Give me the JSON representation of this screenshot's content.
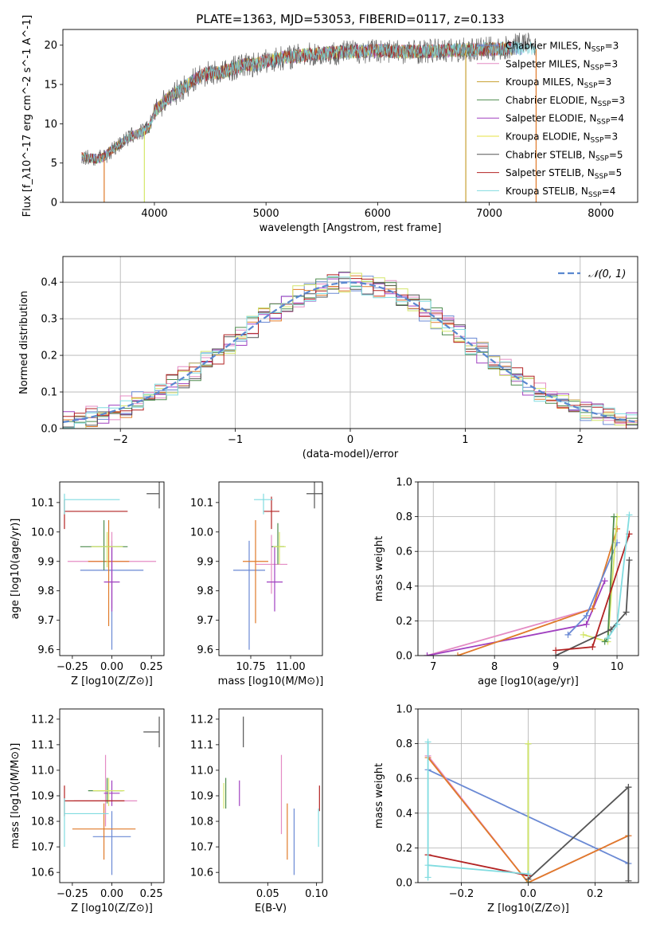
{
  "figure_title": "PLATE=1363, MJD=53053, FIBERID=0117, z=0.133",
  "chart_data": [
    {
      "id": "spectrum",
      "type": "line",
      "title": "PLATE=1363, MJD=53053, FIBERID=0117, z=0.133",
      "xlabel": "wavelength [Angstrom, rest frame]",
      "ylabel": "Flux [f_λ10^-17 erg cm^-2 s^-1 A^-1]",
      "xlim": [
        3180,
        8330
      ],
      "ylim": [
        0,
        22
      ],
      "xticks": [
        4000,
        5000,
        6000,
        7000,
        8000
      ],
      "yticks": [
        0,
        5,
        10,
        15,
        20
      ],
      "legend_position": "upper right",
      "series": [
        {
          "name": "Chabrier MILES, N_SSP=3",
          "color": "#6a89d4"
        },
        {
          "name": "Salpeter MILES, N_SSP=3",
          "color": "#e48bc4"
        },
        {
          "name": "Kroupa MILES, N_SSP=3",
          "color": "#c8a030"
        },
        {
          "name": "Chabrier ELODIE, N_SSP=3",
          "color": "#4e8c4e"
        },
        {
          "name": "Salpeter ELODIE, N_SSP=4",
          "color": "#a040c0"
        },
        {
          "name": "Kroupa ELODIE, N_SSP=3",
          "color": "#e6e040"
        },
        {
          "name": "Chabrier STELIB, N_SSP=5",
          "color": "#555555"
        },
        {
          "name": "Salpeter STELIB, N_SSP=5",
          "color": "#b22222"
        },
        {
          "name": "Kroupa STELIB, N_SSP=4",
          "color": "#80dce0"
        }
      ],
      "continuum": {
        "x": [
          3350,
          3500,
          3550,
          3600,
          3700,
          3800,
          3900,
          3950,
          4000,
          4100,
          4200,
          4300,
          4400,
          4500,
          4600,
          4700,
          4800,
          4900,
          5000,
          5200,
          5400,
          5600,
          5800,
          6000,
          6200,
          6400,
          6600,
          6800,
          7000,
          7200,
          7400
        ],
        "y": [
          5.8,
          5.5,
          5.8,
          6.5,
          7.5,
          8.5,
          9.0,
          9.5,
          11.5,
          13.0,
          14.0,
          15.0,
          16.0,
          16.5,
          16.5,
          17.0,
          17.5,
          17.5,
          18.0,
          18.5,
          18.8,
          19.0,
          19.2,
          19.3,
          19.2,
          19.2,
          19.3,
          19.4,
          19.5,
          19.6,
          19.5
        ]
      }
    },
    {
      "id": "residuals",
      "type": "bar",
      "xlabel": "(data-model)/error",
      "ylabel": "Normed distribution",
      "xlim": [
        -2.5,
        2.5
      ],
      "ylim": [
        0,
        0.47
      ],
      "xticks": [
        -2,
        -1,
        0,
        1,
        2
      ],
      "yticks": [
        0.0,
        0.1,
        0.2,
        0.3,
        0.4
      ],
      "legend": "𝒩(0, 1)",
      "legend_position": "upper right",
      "normal_curve_color": "#5a88d0",
      "bin_edges_from": -2.5,
      "bin_width": 0.1,
      "series_colors": [
        "#6a89d4",
        "#e48bc4",
        "#e07a2a",
        "#4e8c4e",
        "#a040c0",
        "#d4e66a",
        "#555555",
        "#b22222",
        "#80dce0"
      ]
    },
    {
      "id": "age_vs_Z",
      "type": "scatter",
      "xlabel": "Z [log10(Z/Z⊙)]",
      "ylabel": "age  [log10(age/yr)]",
      "xlim": [
        -0.33,
        0.33
      ],
      "ylim": [
        9.58,
        10.17
      ],
      "xticks": [
        -0.25,
        0.0,
        0.25
      ],
      "xtick_labels": [
        "−0.25",
        "0.00",
        "0.25"
      ],
      "yticks": [
        9.6,
        9.7,
        9.8,
        9.9,
        10.0,
        10.1
      ],
      "points": [
        {
          "x": 0.0,
          "y": 9.87,
          "xerr": [
            0.2,
            0.2
          ],
          "yerr": [
            0.27,
            0.1
          ],
          "color": "#6a89d4"
        },
        {
          "x": 0.0,
          "y": 9.9,
          "xerr": [
            0.28,
            0.28
          ],
          "yerr": [
            0.16,
            0.1
          ],
          "color": "#e48bc4"
        },
        {
          "x": -0.02,
          "y": 9.9,
          "xerr": [
            0.13,
            0.13
          ],
          "yerr": [
            0.22,
            0.14
          ],
          "color": "#e07a2a"
        },
        {
          "x": -0.05,
          "y": 9.95,
          "xerr": [
            0.15,
            0.15
          ],
          "yerr": [
            0.08,
            0.09
          ],
          "color": "#4e8c4e"
        },
        {
          "x": 0.0,
          "y": 9.83,
          "xerr": [
            0.05,
            0.05
          ],
          "yerr": [
            0.1,
            0.12
          ],
          "color": "#a040c0"
        },
        {
          "x": -0.03,
          "y": 9.95,
          "xerr": [
            0.1,
            0.1
          ],
          "yerr": [
            0.07,
            0.05
          ],
          "color": "#d4e66a"
        },
        {
          "x": 0.3,
          "y": 10.13,
          "xerr": [
            0.08,
            0.0
          ],
          "yerr": [
            0.05,
            0.04
          ],
          "color": "#555555"
        },
        {
          "x": -0.3,
          "y": 10.07,
          "xerr": [
            0.0,
            0.4
          ],
          "yerr": [
            0.06,
            0.04
          ],
          "color": "#b22222"
        },
        {
          "x": -0.3,
          "y": 10.11,
          "xerr": [
            0.0,
            0.35
          ],
          "yerr": [
            0.05,
            0.02
          ],
          "color": "#80dce0"
        }
      ]
    },
    {
      "id": "age_vs_mass",
      "type": "scatter",
      "xlabel": "mass [log10(M/M⊙)]",
      "ylabel": "",
      "xlim": [
        10.55,
        11.2
      ],
      "ylim": [
        9.58,
        10.17
      ],
      "xticks": [
        10.75,
        11.0
      ],
      "xtick_labels": [
        "10.75",
        "11.00"
      ],
      "yticks": [
        9.6,
        9.7,
        9.8,
        9.9,
        10.0,
        10.1
      ],
      "points": [
        {
          "x": 10.74,
          "y": 9.87,
          "xerr": [
            0.1,
            0.1
          ],
          "yerr": [
            0.27,
            0.1
          ],
          "color": "#6a89d4"
        },
        {
          "x": 10.88,
          "y": 9.89,
          "xerr": [
            0.1,
            0.1
          ],
          "yerr": [
            0.1,
            0.1
          ],
          "color": "#e48bc4"
        },
        {
          "x": 10.78,
          "y": 9.9,
          "xerr": [
            0.08,
            0.08
          ],
          "yerr": [
            0.21,
            0.14
          ],
          "color": "#e07a2a"
        },
        {
          "x": 10.92,
          "y": 9.95,
          "xerr": [
            0.04,
            0.04
          ],
          "yerr": [
            0.06,
            0.08
          ],
          "color": "#4e8c4e"
        },
        {
          "x": 10.9,
          "y": 9.83,
          "xerr": [
            0.05,
            0.05
          ],
          "yerr": [
            0.1,
            0.12
          ],
          "color": "#a040c0"
        },
        {
          "x": 10.93,
          "y": 9.95,
          "xerr": [
            0.04,
            0.04
          ],
          "yerr": [
            0.06,
            0.05
          ],
          "color": "#d4e66a"
        },
        {
          "x": 11.15,
          "y": 10.13,
          "xerr": [
            0.05,
            0.05
          ],
          "yerr": [
            0.05,
            0.04
          ],
          "color": "#555555"
        },
        {
          "x": 10.88,
          "y": 10.07,
          "xerr": [
            0.05,
            0.05
          ],
          "yerr": [
            0.06,
            0.05
          ],
          "color": "#b22222"
        },
        {
          "x": 10.83,
          "y": 10.11,
          "xerr": [
            0.06,
            0.06
          ],
          "yerr": [
            0.05,
            0.02
          ],
          "color": "#80dce0"
        }
      ]
    },
    {
      "id": "massweight_vs_age",
      "type": "line",
      "xlabel": "age  [log10(age/yr)]",
      "ylabel": "mass weight",
      "xlim": [
        6.75,
        10.35
      ],
      "ylim": [
        0,
        1.0
      ],
      "xticks": [
        7,
        8,
        9,
        10
      ],
      "yticks": [
        0.0,
        0.2,
        0.4,
        0.6,
        0.8,
        1.0
      ],
      "series": [
        {
          "color": "#e48bc4",
          "x": [
            6.9,
            9.6
          ],
          "y": [
            0.0,
            0.27
          ]
        },
        {
          "color": "#a040c0",
          "x": [
            6.9,
            9.5,
            9.8
          ],
          "y": [
            0.0,
            0.18,
            0.43
          ]
        },
        {
          "color": "#e07a2a",
          "x": [
            7.4,
            9.6,
            10.0
          ],
          "y": [
            0.0,
            0.27,
            0.73
          ]
        },
        {
          "color": "#6a89d4",
          "x": [
            9.2,
            9.5,
            10.0
          ],
          "y": [
            0.12,
            0.23,
            0.65
          ]
        },
        {
          "color": "#d4e66a",
          "x": [
            9.45,
            9.85,
            10.0
          ],
          "y": [
            0.12,
            0.08,
            0.8
          ]
        },
        {
          "color": "#4e8c4e",
          "x": [
            9.8,
            9.85,
            9.95
          ],
          "y": [
            0.08,
            0.1,
            0.8
          ]
        },
        {
          "color": "#555555",
          "x": [
            9.0,
            9.9,
            10.15,
            10.2
          ],
          "y": [
            0.0,
            0.15,
            0.25,
            0.55
          ]
        },
        {
          "color": "#b22222",
          "x": [
            9.0,
            9.6,
            10.2
          ],
          "y": [
            0.03,
            0.05,
            0.7
          ]
        },
        {
          "color": "#80dce0",
          "x": [
            9.85,
            10.0,
            10.2
          ],
          "y": [
            0.1,
            0.18,
            0.81
          ]
        }
      ]
    },
    {
      "id": "mass_vs_Z",
      "type": "scatter",
      "xlabel": "Z [log10(Z/Z⊙)]",
      "ylabel": "mass [log10(M/M⊙)]",
      "xlim": [
        -0.33,
        0.33
      ],
      "ylim": [
        10.56,
        11.24
      ],
      "xticks": [
        -0.25,
        0.0,
        0.25
      ],
      "xtick_labels": [
        "−0.25",
        "0.00",
        "0.25"
      ],
      "yticks": [
        10.6,
        10.7,
        10.8,
        10.9,
        11.0,
        11.1,
        11.2
      ],
      "points": [
        {
          "x": 0.0,
          "y": 10.74,
          "xerr": [
            0.12,
            0.12
          ],
          "yerr": [
            0.15,
            0.1
          ],
          "color": "#6a89d4"
        },
        {
          "x": -0.04,
          "y": 10.88,
          "xerr": [
            0.2,
            0.2
          ],
          "yerr": [
            0.1,
            0.18
          ],
          "color": "#e48bc4"
        },
        {
          "x": -0.05,
          "y": 10.77,
          "xerr": [
            0.2,
            0.2
          ],
          "yerr": [
            0.12,
            0.1
          ],
          "color": "#e07a2a"
        },
        {
          "x": -0.03,
          "y": 10.92,
          "xerr": [
            0.12,
            0.1
          ],
          "yerr": [
            0.05,
            0.05
          ],
          "color": "#4e8c4e"
        },
        {
          "x": 0.0,
          "y": 10.91,
          "xerr": [
            0.05,
            0.05
          ],
          "yerr": [
            0.05,
            0.05
          ],
          "color": "#a040c0"
        },
        {
          "x": -0.02,
          "y": 10.92,
          "xerr": [
            0.1,
            0.1
          ],
          "yerr": [
            0.06,
            0.05
          ],
          "color": "#d4e66a"
        },
        {
          "x": 0.3,
          "y": 11.15,
          "xerr": [
            0.1,
            0.0
          ],
          "yerr": [
            0.06,
            0.06
          ],
          "color": "#555555"
        },
        {
          "x": -0.3,
          "y": 10.88,
          "xerr": [
            0.0,
            0.38
          ],
          "yerr": [
            0.06,
            0.06
          ],
          "color": "#b22222"
        },
        {
          "x": -0.3,
          "y": 10.83,
          "xerr": [
            0.0,
            0.28
          ],
          "yerr": [
            0.13,
            0.06
          ],
          "color": "#80dce0"
        }
      ]
    },
    {
      "id": "mass_vs_ebv",
      "type": "scatter",
      "xlabel": "E(B-V)",
      "ylabel": "",
      "xlim": [
        0.0,
        0.106
      ],
      "ylim": [
        10.56,
        11.24
      ],
      "xticks": [
        0.05,
        0.1
      ],
      "xtick_labels": [
        "0.05",
        "0.10"
      ],
      "yticks": [
        10.6,
        10.7,
        10.8,
        10.9,
        11.0,
        11.1,
        11.2
      ],
      "points": [
        {
          "x": 0.077,
          "y": 10.74,
          "xerr": [
            0,
            0
          ],
          "yerr": [
            0.15,
            0.11
          ],
          "color": "#6a89d4"
        },
        {
          "x": 0.064,
          "y": 10.88,
          "xerr": [
            0,
            0
          ],
          "yerr": [
            0.13,
            0.18
          ],
          "color": "#e48bc4"
        },
        {
          "x": 0.07,
          "y": 10.77,
          "xerr": [
            0,
            0
          ],
          "yerr": [
            0.12,
            0.1
          ],
          "color": "#e07a2a"
        },
        {
          "x": 0.007,
          "y": 10.91,
          "xerr": [
            0,
            0
          ],
          "yerr": [
            0.06,
            0.06
          ],
          "color": "#4e8c4e"
        },
        {
          "x": 0.021,
          "y": 10.91,
          "xerr": [
            0,
            0
          ],
          "yerr": [
            0.05,
            0.05
          ],
          "color": "#a040c0"
        },
        {
          "x": 0.005,
          "y": 10.9,
          "xerr": [
            0,
            0
          ],
          "yerr": [
            0.05,
            0.05
          ],
          "color": "#d4e66a"
        },
        {
          "x": 0.025,
          "y": 11.15,
          "xerr": [
            0,
            0
          ],
          "yerr": [
            0.06,
            0.06
          ],
          "color": "#555555"
        },
        {
          "x": 0.103,
          "y": 10.88,
          "xerr": [
            0,
            0
          ],
          "yerr": [
            0.04,
            0.06
          ],
          "color": "#b22222"
        },
        {
          "x": 0.102,
          "y": 10.8,
          "xerr": [
            0,
            0
          ],
          "yerr": [
            0.1,
            0.05
          ],
          "color": "#80dce0"
        }
      ]
    },
    {
      "id": "massweight_vs_Z",
      "type": "line",
      "xlabel": "Z [log10(Z/Z⊙)]",
      "ylabel": "mass weight",
      "xlim": [
        -0.33,
        0.33
      ],
      "ylim": [
        0,
        1.0
      ],
      "xticks": [
        -0.2,
        0.0,
        0.2
      ],
      "xtick_labels": [
        "−0.2",
        "0.0",
        "0.2"
      ],
      "yticks": [
        0.0,
        0.2,
        0.4,
        0.6,
        0.8,
        1.0
      ],
      "series": [
        {
          "color": "#6a89d4",
          "x": [
            -0.3,
            0.3
          ],
          "y": [
            0.65,
            0.11
          ]
        },
        {
          "color": "#e48bc4",
          "x": [
            -0.3,
            0.0,
            0.3
          ],
          "y": [
            0.73,
            0.0,
            0.27
          ]
        },
        {
          "color": "#e07a2a",
          "x": [
            -0.3,
            0.0,
            0.3
          ],
          "y": [
            0.72,
            0.0,
            0.27
          ]
        },
        {
          "color": "#4e8c4e",
          "x": [
            0.0,
            0.0
          ],
          "y": [
            0.0,
            0.8
          ]
        },
        {
          "color": "#d4e66a",
          "x": [
            0.0,
            0.0
          ],
          "y": [
            0.0,
            0.8
          ]
        },
        {
          "color": "#555555",
          "x": [
            0.0,
            0.3
          ],
          "y": [
            0.02,
            0.55
          ]
        },
        {
          "color": "#b22222",
          "x": [
            -0.3,
            0.0
          ],
          "y": [
            0.16,
            0.04
          ]
        },
        {
          "color": "#80dce0",
          "x": [
            -0.3,
            0.0
          ],
          "y": [
            0.1,
            0.05
          ]
        },
        {
          "color": "#80dce0",
          "x": [
            -0.3,
            -0.3
          ],
          "y": [
            0.03,
            0.81
          ]
        },
        {
          "color": "#555555",
          "x": [
            0.3,
            0.3
          ],
          "y": [
            0.01,
            0.55
          ]
        }
      ]
    }
  ]
}
